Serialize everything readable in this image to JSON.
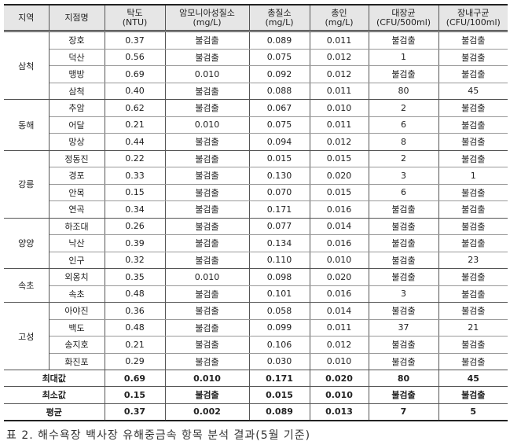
{
  "table": {
    "headers": [
      "지역",
      "지점명",
      "탁도\n(NTU)",
      "암모니아성질소\n(mg/L)",
      "총질소\n(mg/L)",
      "총인\n(mg/L)",
      "대장균\n(CFU/500ml)",
      "장내구균\n(CFU/100ml)"
    ],
    "groups": [
      {
        "region": "삼척",
        "rows": [
          [
            "장호",
            "0.37",
            "불검출",
            "0.089",
            "0.011",
            "불검출",
            "불검출"
          ],
          [
            "덕산",
            "0.56",
            "불검출",
            "0.075",
            "0.012",
            "1",
            "불검출"
          ],
          [
            "맹방",
            "0.69",
            "0.010",
            "0.092",
            "0.012",
            "불검출",
            "불검출"
          ],
          [
            "삼척",
            "0.40",
            "불검출",
            "0.088",
            "0.011",
            "80",
            "45"
          ]
        ]
      },
      {
        "region": "동해",
        "rows": [
          [
            "추암",
            "0.62",
            "불검출",
            "0.067",
            "0.010",
            "2",
            "불검출"
          ],
          [
            "어달",
            "0.21",
            "0.010",
            "0.075",
            "0.011",
            "6",
            "불검출"
          ],
          [
            "망상",
            "0.44",
            "불검출",
            "0.094",
            "0.012",
            "8",
            "불검출"
          ]
        ]
      },
      {
        "region": "강릉",
        "rows": [
          [
            "정동진",
            "0.22",
            "불검출",
            "0.015",
            "0.015",
            "2",
            "불검출"
          ],
          [
            "경포",
            "0.33",
            "불검출",
            "0.130",
            "0.020",
            "3",
            "1"
          ],
          [
            "안목",
            "0.15",
            "불검출",
            "0.070",
            "0.015",
            "6",
            "불검출"
          ],
          [
            "연곡",
            "0.34",
            "불검출",
            "0.171",
            "0.016",
            "불검출",
            "불검출"
          ]
        ]
      },
      {
        "region": "양양",
        "rows": [
          [
            "하조대",
            "0.26",
            "불검출",
            "0.077",
            "0.014",
            "불검출",
            "불검출"
          ],
          [
            "낙산",
            "0.39",
            "불검출",
            "0.134",
            "0.016",
            "불검출",
            "불검출"
          ],
          [
            "인구",
            "0.32",
            "불검출",
            "0.110",
            "0.010",
            "불검출",
            "23"
          ]
        ]
      },
      {
        "region": "속초",
        "rows": [
          [
            "외옹치",
            "0.35",
            "0.010",
            "0.098",
            "0.020",
            "불검출",
            "불검출"
          ],
          [
            "속초",
            "0.48",
            "불검출",
            "0.101",
            "0.016",
            "3",
            "불검출"
          ]
        ]
      },
      {
        "region": "고성",
        "rows": [
          [
            "아야진",
            "0.36",
            "불검출",
            "0.058",
            "0.014",
            "불검출",
            "불검출"
          ],
          [
            "백도",
            "0.48",
            "불검출",
            "0.099",
            "0.011",
            "37",
            "21"
          ],
          [
            "송지호",
            "0.21",
            "불검출",
            "0.106",
            "0.012",
            "불검출",
            "불검출"
          ],
          [
            "화진포",
            "0.29",
            "불검출",
            "0.030",
            "0.010",
            "불검출",
            "불검출"
          ]
        ]
      }
    ],
    "summary": [
      [
        "최대값",
        "0.69",
        "0.010",
        "0.171",
        "0.020",
        "80",
        "45"
      ],
      [
        "최소값",
        "0.15",
        "불검출",
        "0.015",
        "0.010",
        "불검출",
        "불검출"
      ],
      [
        "평균",
        "0.37",
        "0.002",
        "0.089",
        "0.013",
        "7",
        "5"
      ]
    ]
  },
  "caption": "표 2. 해수욕장 백사장 유해중금속 항목 분석 결과(5월 기준)"
}
